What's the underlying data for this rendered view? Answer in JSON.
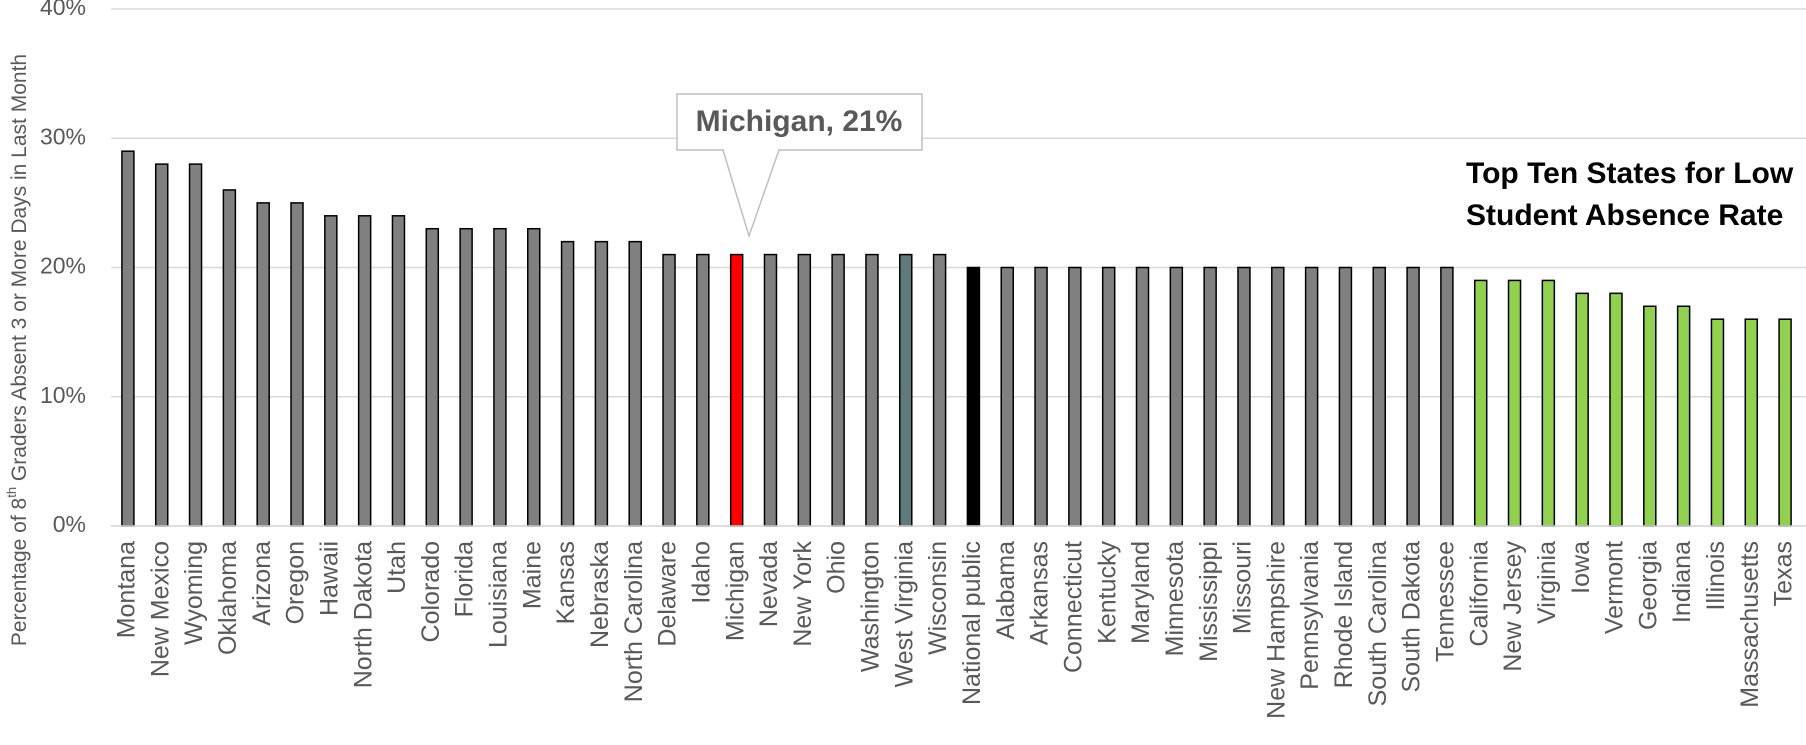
{
  "chart_data": {
    "type": "bar",
    "y_label": [
      "Percentage of 8",
      "th",
      " Graders Absent 3 or More Days in Last Month"
    ],
    "categories": [
      "Montana",
      "New Mexico",
      "Wyoming",
      "Oklahoma",
      "Arizona",
      "Oregon",
      "Hawaii",
      "North Dakota",
      "Utah",
      "Colorado",
      "Florida",
      "Louisiana",
      "Maine",
      "Kansas",
      "Nebraska",
      "North Carolina",
      "Delaware",
      "Idaho",
      "Michigan",
      "Nevada",
      "New York",
      "Ohio",
      "Washington",
      "West Virginia",
      "Wisconsin",
      "National public",
      "Alabama",
      "Arkansas",
      "Connecticut",
      "Kentucky",
      "Maryland",
      "Minnesota",
      "Mississippi",
      "Missouri",
      "New Hampshire",
      "Pennsylvania",
      "Rhode Island",
      "South Carolina",
      "South Dakota",
      "Tennessee",
      "California",
      "New Jersey",
      "Virginia",
      "Iowa",
      "Vermont",
      "Georgia",
      "Indiana",
      "Illinois",
      "Massachusetts",
      "Texas"
    ],
    "values": [
      29,
      28,
      28,
      26,
      25,
      25,
      24,
      24,
      24,
      23,
      23,
      23,
      23,
      22,
      22,
      22,
      21,
      21,
      21,
      21,
      21,
      21,
      21,
      21,
      21,
      20,
      20,
      20,
      20,
      20,
      20,
      20,
      20,
      20,
      20,
      20,
      20,
      20,
      20,
      20,
      19,
      19,
      19,
      18,
      18,
      17,
      17,
      16,
      16,
      16
    ],
    "colors": [
      "#808080",
      "#808080",
      "#808080",
      "#808080",
      "#808080",
      "#808080",
      "#808080",
      "#808080",
      "#808080",
      "#808080",
      "#808080",
      "#808080",
      "#808080",
      "#808080",
      "#808080",
      "#808080",
      "#808080",
      "#808080",
      "#ff0000",
      "#808080",
      "#808080",
      "#808080",
      "#808080",
      "#5f7a7a",
      "#808080",
      "#000000",
      "#808080",
      "#808080",
      "#808080",
      "#808080",
      "#808080",
      "#808080",
      "#808080",
      "#808080",
      "#808080",
      "#808080",
      "#808080",
      "#808080",
      "#808080",
      "#808080",
      "#92d050",
      "#92d050",
      "#92d050",
      "#92d050",
      "#92d050",
      "#92d050",
      "#92d050",
      "#92d050",
      "#92d050",
      "#92d050"
    ],
    "ylim": [
      0,
      40
    ],
    "yticks": [
      {
        "value": 0,
        "label": "0%"
      },
      {
        "value": 10,
        "label": "10%"
      },
      {
        "value": 20,
        "label": "20%"
      },
      {
        "value": 30,
        "label": "30%"
      },
      {
        "value": 40,
        "label": "40%"
      }
    ],
    "grid": true,
    "annotations": [
      "Michigan, 21%",
      "Top Ten States for Low",
      "Student Absence Rate"
    ]
  }
}
